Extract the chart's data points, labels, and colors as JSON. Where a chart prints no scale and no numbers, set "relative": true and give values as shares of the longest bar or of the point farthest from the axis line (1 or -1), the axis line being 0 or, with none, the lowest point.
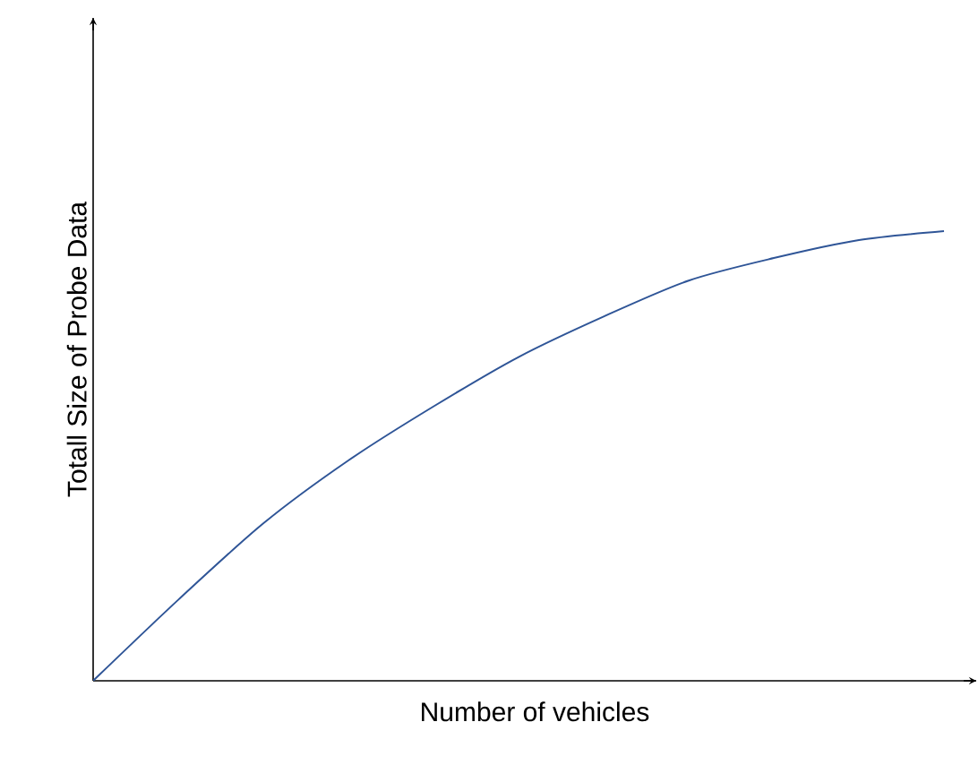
{
  "chart_data": {
    "type": "line",
    "relative": true,
    "xlabel": "Number of vehicles",
    "ylabel": "Totall Size of Probe Data",
    "categories": [
      null,
      null,
      null,
      null,
      null,
      null,
      null,
      null,
      null,
      null,
      null
    ],
    "series": [
      {
        "color": "#2f5597",
        "values": [
          0,
          0.18,
          0.35,
          0.49,
          0.61,
          0.72,
          0.81,
          0.89,
          0.94,
          0.98,
          1
        ]
      }
    ],
    "marker": "none",
    "line_style": "solid"
  }
}
